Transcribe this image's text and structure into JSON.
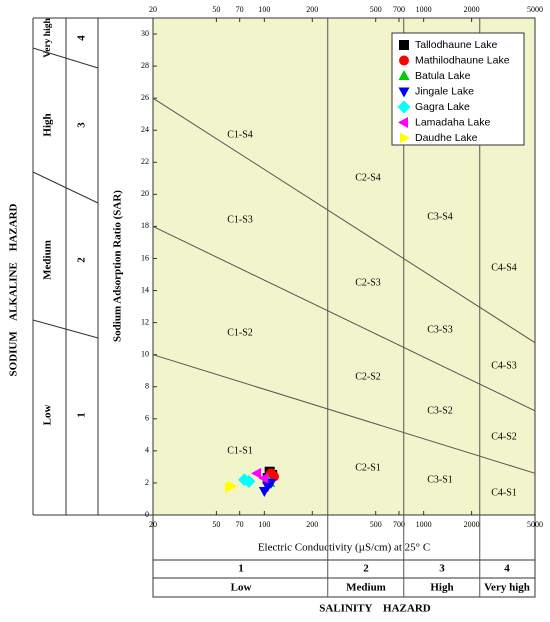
{
  "chart_data": {
    "type": "scatter",
    "x_label": "Electric Conductivity (µS/cm) at 25° C",
    "y_label": "Sodium Adsorption Ratio (SAR)",
    "log_x": true,
    "xlim": [
      20,
      5000
    ],
    "xticks": [
      20,
      50,
      70,
      100,
      200,
      500,
      700,
      1000,
      2000,
      5000
    ],
    "ylim": [
      0,
      31
    ],
    "yticks": [
      0,
      2,
      4,
      6,
      8,
      10,
      12,
      14,
      16,
      18,
      20,
      22,
      24,
      26,
      28,
      30
    ],
    "plot_color": "#f2f5cc",
    "salinity_bounds": [
      250,
      750,
      2250
    ],
    "sar_lines": [
      {
        "x": [
          20,
          5000
        ],
        "y": [
          10,
          2.6
        ]
      },
      {
        "x": [
          20,
          5000
        ],
        "y": [
          18,
          6.5
        ]
      },
      {
        "x": [
          20,
          5000
        ],
        "y": [
          26,
          10.75
        ]
      }
    ],
    "zone_labels": [
      "C1-S4",
      "C1-S3",
      "C1-S2",
      "C1-S1",
      "C2-S4",
      "C2-S3",
      "C2-S2",
      "C2-S1",
      "C3-S4",
      "C3-S3",
      "C3-S2",
      "C3-S1",
      "C4-S4",
      "C4-S3",
      "C4-S2",
      "C4-S1"
    ],
    "legend": "top-right",
    "series": [
      {
        "name": "Tallodhaune Lake",
        "color": "#000000",
        "marker": "square",
        "x": [
          108,
          112,
          105
        ],
        "y": [
          2.7,
          2.5,
          2.3
        ]
      },
      {
        "name": "Mathilodhaune Lake",
        "color": "#ff0000",
        "marker": "circle",
        "x": [
          110,
          115
        ],
        "y": [
          2.6,
          2.4
        ]
      },
      {
        "name": "Batula Lake",
        "color": "#00cc00",
        "marker": "triangle-up",
        "x": [
          105,
          108
        ],
        "y": [
          2.2,
          2.0
        ]
      },
      {
        "name": "Jingale Lake",
        "color": "#0000ff",
        "marker": "triangle-down",
        "x": [
          100,
          105,
          110
        ],
        "y": [
          1.5,
          1.8,
          2.0
        ]
      },
      {
        "name": "Gagra Lake",
        "color": "#00ffff",
        "marker": "diamond",
        "x": [
          75,
          80
        ],
        "y": [
          2.2,
          2.1
        ]
      },
      {
        "name": "Lamadaha Lake",
        "color": "#ff00ff",
        "marker": "triangle-left",
        "x": [
          90,
          100
        ],
        "y": [
          2.6,
          2.3
        ]
      },
      {
        "name": "Daudhe Lake",
        "color": "#ffff00",
        "marker": "triangle-right",
        "x": [
          60,
          62
        ],
        "y": [
          1.7,
          1.8
        ]
      }
    ],
    "sodium_hazard": {
      "title": "SODIUM    ALKALINE    HAZARD",
      "classes": [
        {
          "number": "1",
          "label": "Low"
        },
        {
          "number": "2",
          "label": "Medium"
        },
        {
          "number": "3",
          "label": "High"
        },
        {
          "number": "4",
          "label": "Very high"
        }
      ]
    },
    "salinity_hazard": {
      "title": "SALINITY    HAZARD",
      "classes": [
        {
          "number": "1",
          "label": "Low"
        },
        {
          "number": "2",
          "label": "Medium"
        },
        {
          "number": "3",
          "label": "High"
        },
        {
          "number": "4",
          "label": "Very high"
        }
      ]
    }
  }
}
